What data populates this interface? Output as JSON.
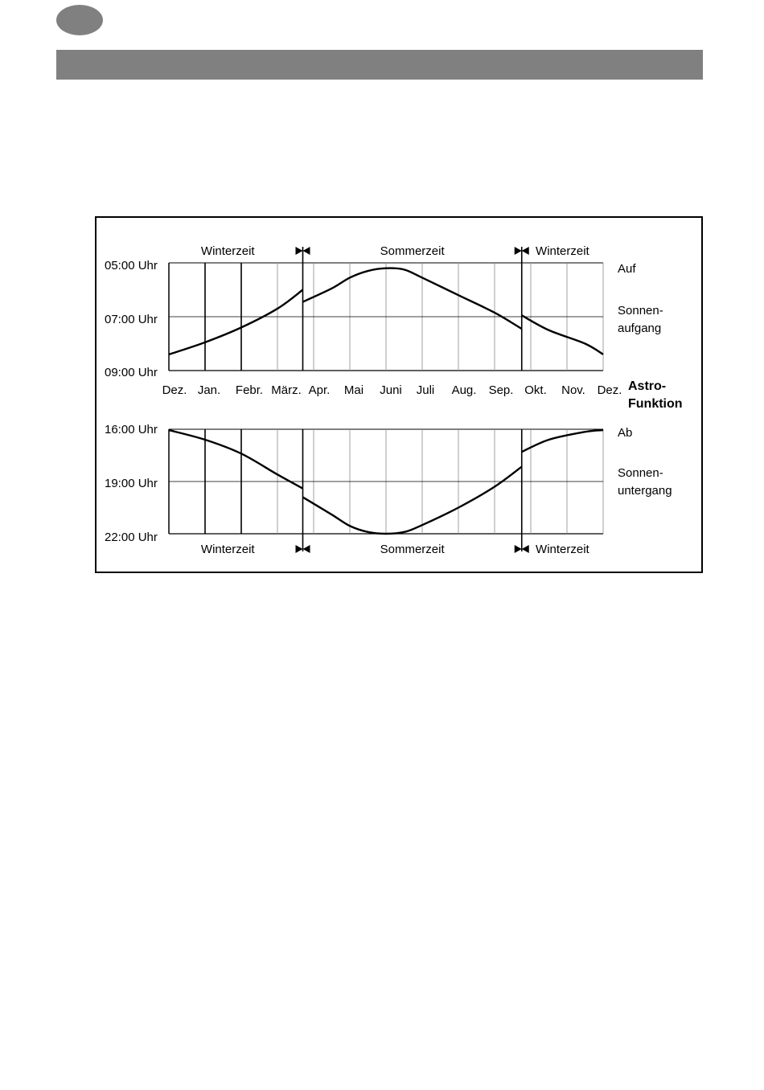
{
  "colors": {
    "header_bar": "#808080",
    "page_circle": "#808080",
    "line": "#000000"
  },
  "chart_data": [
    {
      "type": "line",
      "title": "",
      "panel_label": "Auf",
      "right_label_lines": [
        "Sonnen-",
        "aufgang"
      ],
      "categories": [
        "Dez.",
        "Jan.",
        "Febr.",
        "März.",
        "Apr.",
        "Mai",
        "Juni",
        "Juli",
        "Aug.",
        "Sep.",
        "Okt.",
        "Nov.",
        "Dez."
      ],
      "y_tick_labels": [
        "05:00 Uhr",
        "07:00 Uhr",
        "09:00 Uhr"
      ],
      "ylim_hours": [
        5,
        9
      ],
      "y_inverted": true,
      "grid": true,
      "season_labels": [
        "Winterzeit",
        "Sommerzeit",
        "Winterzeit"
      ],
      "dst_switch_months": [
        3.7,
        9.75
      ],
      "series": [
        {
          "segments": [
            [
              [
                0,
                8.4
              ],
              [
                1,
                7.95
              ],
              [
                2,
                7.4
              ],
              [
                3,
                6.7
              ],
              [
                3.7,
                6.0
              ]
            ],
            [
              [
                3.7,
                6.45
              ],
              [
                4.5,
                5.95
              ],
              [
                5,
                5.55
              ],
              [
                5.5,
                5.3
              ],
              [
                6,
                5.2
              ],
              [
                6.5,
                5.25
              ],
              [
                7,
                5.55
              ],
              [
                8,
                6.2
              ],
              [
                9,
                6.85
              ],
              [
                9.75,
                7.45
              ]
            ],
            [
              [
                9.75,
                6.95
              ],
              [
                10.5,
                7.5
              ],
              [
                11.5,
                8.0
              ],
              [
                12,
                8.4
              ]
            ]
          ]
        }
      ]
    },
    {
      "type": "line",
      "title": "",
      "panel_label": "Ab",
      "right_label_lines": [
        "Sonnen-",
        "untergang"
      ],
      "categories": [
        "Dez.",
        "Jan.",
        "Febr.",
        "März.",
        "Apr.",
        "Mai",
        "Juni",
        "Juli",
        "Aug.",
        "Sep.",
        "Okt.",
        "Nov.",
        "Dez."
      ],
      "y_tick_labels": [
        "16:00 Uhr",
        "19:00 Uhr",
        "22:00 Uhr"
      ],
      "ylim_hours": [
        16,
        22
      ],
      "y_inverted": true,
      "grid": true,
      "season_labels": [
        "Winterzeit",
        "Sommerzeit",
        "Winterzeit"
      ],
      "dst_switch_months": [
        3.7,
        9.75
      ],
      "series": [
        {
          "segments": [
            [
              [
                0,
                16.05
              ],
              [
                1,
                16.6
              ],
              [
                2,
                17.4
              ],
              [
                3,
                18.6
              ],
              [
                3.7,
                19.4
              ]
            ],
            [
              [
                3.7,
                19.9
              ],
              [
                4.5,
                20.9
              ],
              [
                5,
                21.55
              ],
              [
                5.5,
                21.9
              ],
              [
                6,
                22.0
              ],
              [
                6.5,
                21.9
              ],
              [
                7,
                21.5
              ],
              [
                8,
                20.5
              ],
              [
                9,
                19.3
              ],
              [
                9.75,
                18.15
              ]
            ],
            [
              [
                9.75,
                17.3
              ],
              [
                10.5,
                16.6
              ],
              [
                11.5,
                16.15
              ],
              [
                12,
                16.05
              ]
            ]
          ]
        }
      ]
    }
  ],
  "center_label_lines": [
    "Astro-",
    "Funktion"
  ]
}
